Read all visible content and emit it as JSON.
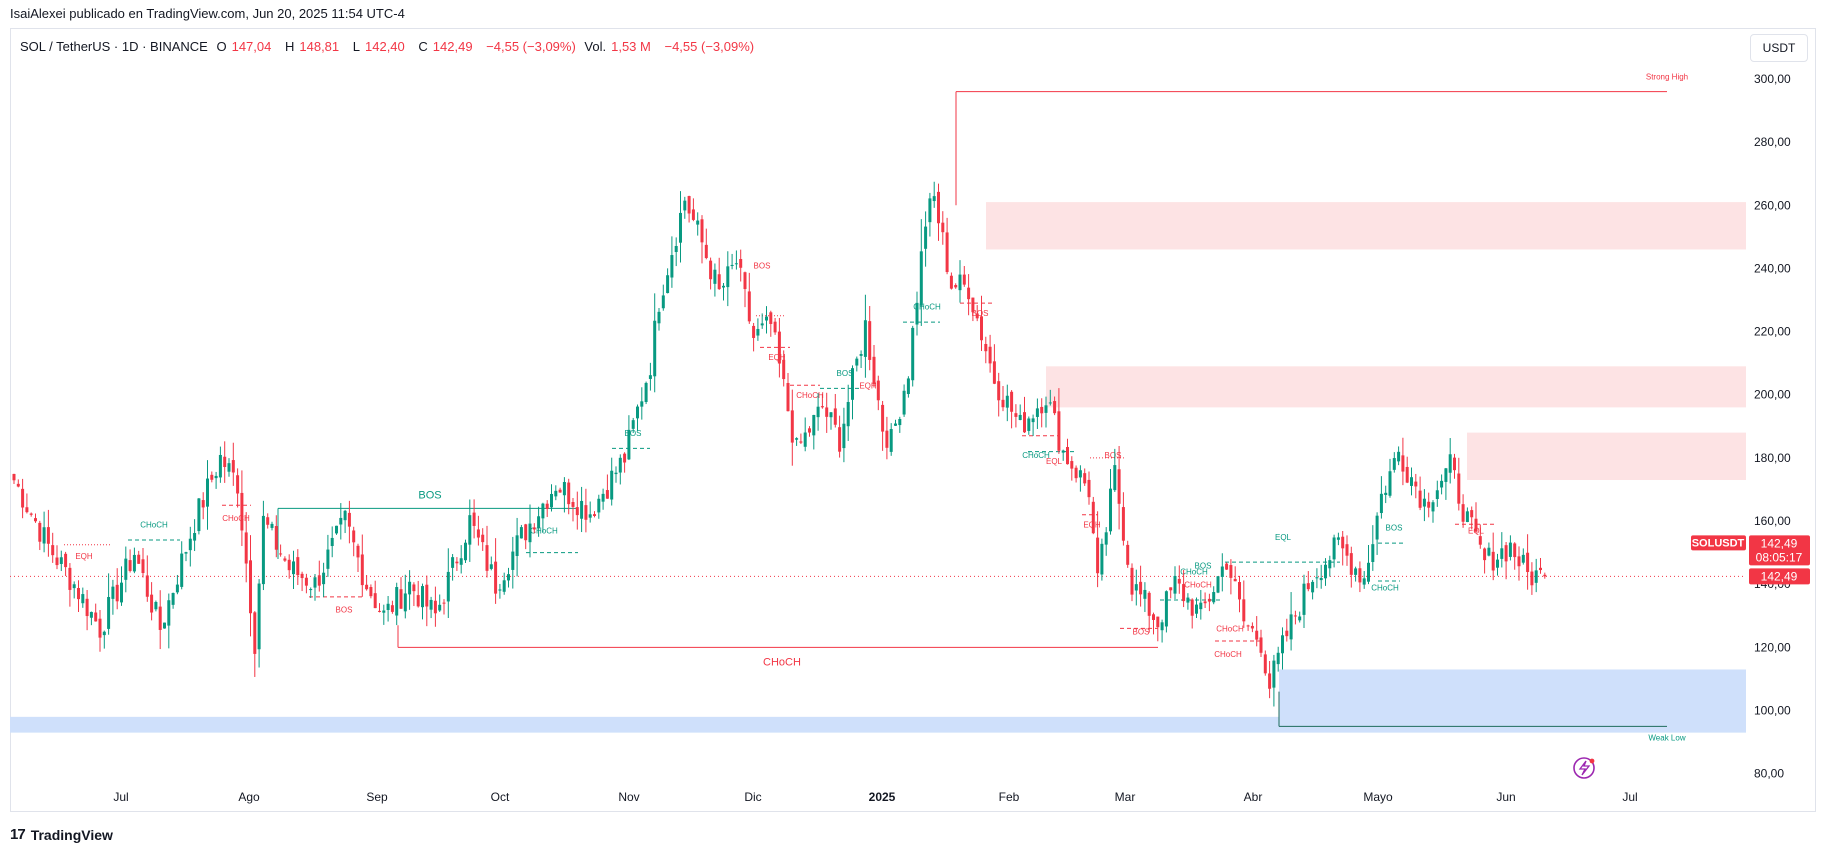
{
  "header": {
    "caption": "IsaiAlexei publicado en TradingView.com, Jun 20, 2025 11:54 UTC-4"
  },
  "legend": {
    "symbol": "SOL / TetherUS · 1D · BINANCE",
    "o_label": "O",
    "o_value": "147,04",
    "h_label": "H",
    "h_value": "148,81",
    "l_label": "L",
    "l_value": "142,40",
    "c_label": "C",
    "c_value": "142,49",
    "change": "−4,55 (−3,09%)",
    "vol_label": "Vol.",
    "vol_value": "1,53 M",
    "vol_change": "−4,55 (−3,09%)"
  },
  "currency_button": "USDT",
  "price_badge": {
    "symbol": "SOLUSDT",
    "price": "142,49",
    "countdown": "08:05:17",
    "price2": "142,49"
  },
  "footer": {
    "brand": "TradingView",
    "logo_mark": "17"
  },
  "colors": {
    "up": "#089981",
    "down": "#f23645",
    "supply_zone": "#fde3e4",
    "demand_zone": "#cfe0fb"
  },
  "chart_data": {
    "type": "candlestick",
    "title": "SOL / TetherUS · 1D · BINANCE",
    "ylim": [
      78,
      306
    ],
    "y_ticks": [
      "300,00",
      "280,00",
      "260,00",
      "240,00",
      "220,00",
      "200,00",
      "180,00",
      "160,00",
      "140,00",
      "120,00",
      "100,00",
      "80,00"
    ],
    "x_ticks": [
      "Jul",
      "Ago",
      "Sep",
      "Oct",
      "Nov",
      "Dic",
      "2025",
      "Feb",
      "Mar",
      "Abr",
      "Mayo",
      "Jun",
      "Jul"
    ],
    "last_price": 142.49,
    "zones": [
      {
        "kind": "supply",
        "y_top": 261,
        "y_bottom": 246,
        "from": "Ene",
        "to": "edge"
      },
      {
        "kind": "supply",
        "y_top": 209,
        "y_bottom": 196,
        "from": "Feb",
        "to": "edge"
      },
      {
        "kind": "supply",
        "y_top": 188,
        "y_bottom": 173,
        "from": "May",
        "to": "edge"
      },
      {
        "kind": "demand",
        "y_top": 113,
        "y_bottom": 96,
        "from": "Abr",
        "to": "edge"
      },
      {
        "kind": "demand",
        "y_top": 98,
        "y_bottom": 93,
        "from": "start",
        "to": "edge"
      }
    ],
    "annotations": [
      {
        "text": "Strong High",
        "price": 296
      },
      {
        "text": "Weak Low",
        "price": 95
      },
      {
        "text": "BOS",
        "price": 164
      },
      {
        "text": "CHoCH",
        "price": 120
      },
      {
        "text": "EQH",
        "price": 170
      },
      {
        "text": "EQL",
        "price": 142
      }
    ],
    "structure_labels": [
      "EQH",
      "CHoCH",
      "CHoCH",
      "BOS",
      "CHoCH",
      "BOS",
      "BOS",
      "EQH",
      "CHoCH",
      "BOS",
      "EQH",
      "CHoCH",
      "BOS",
      "CHoCH",
      "EQL",
      "BOS",
      "EQH",
      "BOS",
      "BOS",
      "CHoCH",
      "EQL",
      "CHoCH",
      "CHoCH",
      "BOS",
      "CHoCH",
      "EQL",
      "CHoCH"
    ],
    "anchors": [
      {
        "t": 0,
        "p": 173
      },
      {
        "t": 8,
        "p": 152
      },
      {
        "t": 14,
        "p": 140
      },
      {
        "t": 20,
        "p": 126
      },
      {
        "t": 28,
        "p": 150
      },
      {
        "t": 34,
        "p": 126
      },
      {
        "t": 42,
        "p": 160
      },
      {
        "t": 48,
        "p": 180
      },
      {
        "t": 52,
        "p": 172
      },
      {
        "t": 56,
        "p": 122
      },
      {
        "t": 58,
        "p": 160
      },
      {
        "t": 64,
        "p": 145
      },
      {
        "t": 70,
        "p": 140
      },
      {
        "t": 77,
        "p": 160
      },
      {
        "t": 82,
        "p": 140
      },
      {
        "t": 86,
        "p": 130
      },
      {
        "t": 92,
        "p": 140
      },
      {
        "t": 98,
        "p": 130
      },
      {
        "t": 106,
        "p": 160
      },
      {
        "t": 112,
        "p": 140
      },
      {
        "t": 118,
        "p": 155
      },
      {
        "t": 126,
        "p": 172
      },
      {
        "t": 134,
        "p": 163
      },
      {
        "t": 142,
        "p": 180
      },
      {
        "t": 148,
        "p": 210
      },
      {
        "t": 150,
        "p": 230
      },
      {
        "t": 156,
        "p": 262
      },
      {
        "t": 160,
        "p": 248
      },
      {
        "t": 164,
        "p": 232
      },
      {
        "t": 168,
        "p": 242
      },
      {
        "t": 172,
        "p": 218
      },
      {
        "t": 176,
        "p": 222
      },
      {
        "t": 182,
        "p": 182
      },
      {
        "t": 188,
        "p": 196
      },
      {
        "t": 192,
        "p": 186
      },
      {
        "t": 198,
        "p": 222
      },
      {
        "t": 202,
        "p": 190
      },
      {
        "t": 204,
        "p": 185
      },
      {
        "t": 208,
        "p": 208
      },
      {
        "t": 212,
        "p": 255
      },
      {
        "t": 214,
        "p": 262
      },
      {
        "t": 218,
        "p": 235
      },
      {
        "t": 222,
        "p": 234
      },
      {
        "t": 228,
        "p": 205
      },
      {
        "t": 234,
        "p": 190
      },
      {
        "t": 240,
        "p": 200
      },
      {
        "t": 244,
        "p": 182
      },
      {
        "t": 250,
        "p": 170
      },
      {
        "t": 252,
        "p": 140
      },
      {
        "t": 256,
        "p": 175
      },
      {
        "t": 260,
        "p": 140
      },
      {
        "t": 266,
        "p": 128
      },
      {
        "t": 270,
        "p": 140
      },
      {
        "t": 276,
        "p": 130
      },
      {
        "t": 282,
        "p": 148
      },
      {
        "t": 286,
        "p": 128
      },
      {
        "t": 290,
        "p": 122
      },
      {
        "t": 292,
        "p": 108
      },
      {
        "t": 296,
        "p": 124
      },
      {
        "t": 302,
        "p": 143
      },
      {
        "t": 308,
        "p": 152
      },
      {
        "t": 314,
        "p": 142
      },
      {
        "t": 318,
        "p": 168
      },
      {
        "t": 322,
        "p": 182
      },
      {
        "t": 328,
        "p": 166
      },
      {
        "t": 334,
        "p": 177
      },
      {
        "t": 338,
        "p": 160
      },
      {
        "t": 342,
        "p": 147
      },
      {
        "t": 348,
        "p": 152
      },
      {
        "t": 352,
        "p": 143
      },
      {
        "t": 356,
        "p": 142.49
      }
    ]
  }
}
